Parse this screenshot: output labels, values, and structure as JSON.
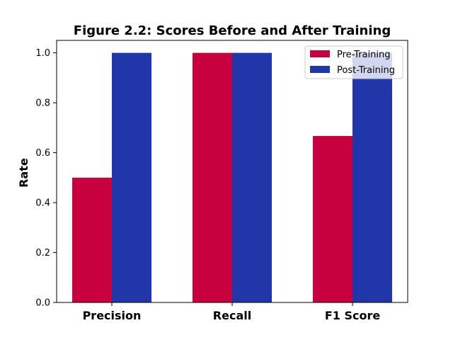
{
  "chart_data": {
    "type": "bar",
    "title": "Figure 2.2: Scores Before and After Training",
    "xlabel": "",
    "ylabel": "Rate",
    "ylim": [
      0,
      1.05
    ],
    "yticks": [
      "0.0",
      "0.2",
      "0.4",
      "0.6",
      "0.8",
      "1.0"
    ],
    "categories": [
      "Precision",
      "Recall",
      "F1 Score"
    ],
    "series": [
      {
        "name": "Pre-Training",
        "color": "#c8003f",
        "values": [
          0.5,
          1.0,
          0.667
        ]
      },
      {
        "name": "Post-Training",
        "color": "#2136a8",
        "values": [
          1.0,
          1.0,
          1.0
        ]
      }
    ],
    "legend_position": "top-right",
    "grid": false
  }
}
